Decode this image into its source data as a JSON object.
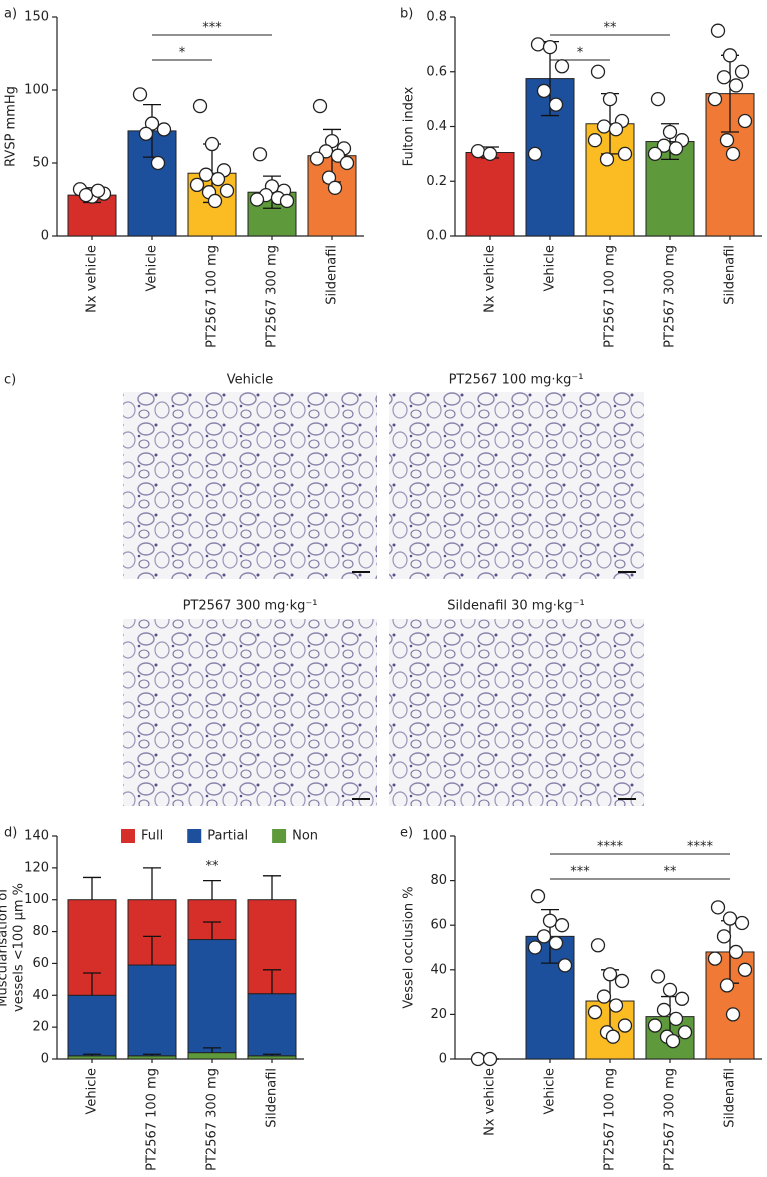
{
  "chart_data": [
    {
      "type": "bar",
      "label": "a)",
      "ylabel": "RVSP mmHg",
      "categories": [
        "Nx vehicle",
        "Vehicle",
        "PT2567 100 mg",
        "PT2567 300 mg",
        "Sildenafil"
      ],
      "values": [
        28,
        72,
        43,
        30,
        55
      ],
      "errors": [
        5,
        18,
        20,
        11,
        18
      ],
      "colors": [
        "#d62f2a",
        "#1c4f9c",
        "#fbbb22",
        "#5e9a3c",
        "#f07a35"
      ],
      "points": [
        [
          32,
          27,
          29,
          28,
          31
        ],
        [
          97,
          77,
          73,
          70,
          50
        ],
        [
          89,
          63,
          45,
          42,
          39,
          35,
          31,
          30,
          24
        ],
        [
          56,
          34,
          31,
          28,
          26,
          25,
          24
        ],
        [
          89,
          65,
          60,
          58,
          55,
          53,
          50,
          40,
          33
        ]
      ],
      "ylim": [
        0,
        150
      ],
      "yticks": [
        0,
        50,
        100,
        150
      ],
      "annotations": [
        {
          "between": [
            "Vehicle",
            "PT2567 100 mg"
          ],
          "label": "*"
        },
        {
          "between": [
            "Vehicle",
            "PT2567 300 mg"
          ],
          "label": "***"
        }
      ]
    },
    {
      "type": "bar",
      "label": "b)",
      "ylabel": "Fulton index",
      "categories": [
        "Nx vehicle",
        "Vehicle",
        "PT2567 100 mg",
        "PT2567 300 mg",
        "Sildenafil"
      ],
      "values": [
        0.305,
        0.575,
        0.41,
        0.345,
        0.52
      ],
      "errors": [
        0.02,
        0.135,
        0.11,
        0.065,
        0.14
      ],
      "colors": [
        "#d62f2a",
        "#1c4f9c",
        "#fbbb22",
        "#5e9a3c",
        "#f07a35"
      ],
      "points": [
        [
          0.31,
          0.3
        ],
        [
          0.7,
          0.69,
          0.62,
          0.53,
          0.48,
          0.3
        ],
        [
          0.6,
          0.5,
          0.42,
          0.4,
          0.39,
          0.35,
          0.3,
          0.28
        ],
        [
          0.5,
          0.38,
          0.35,
          0.33,
          0.32,
          0.3
        ],
        [
          0.75,
          0.66,
          0.6,
          0.58,
          0.55,
          0.5,
          0.42,
          0.35,
          0.3
        ]
      ],
      "ylim": [
        0,
        0.8
      ],
      "yticks": [
        {
          "value": 0,
          "label": "0.0"
        },
        0.2,
        0.4,
        0.6,
        0.8
      ],
      "annotations": [
        {
          "between": [
            "Vehicle",
            "PT2567 100 mg"
          ],
          "label": "*"
        },
        {
          "between": [
            "Vehicle",
            "PT2567 300 mg"
          ],
          "label": "**"
        }
      ]
    },
    {
      "type": "stacked_bar",
      "label": "d)",
      "ylabel": [
        "Muscularisation of",
        "vessels <100 µm %"
      ],
      "categories": [
        "Vehicle",
        "PT2567 100 mg",
        "PT2567 300 mg",
        "Sildenafil"
      ],
      "series": [
        {
          "name": "Non",
          "color": "#5e9a3c",
          "values": [
            2,
            2,
            4,
            2
          ],
          "errors": [
            1,
            1,
            3,
            1
          ]
        },
        {
          "name": "Partial",
          "color": "#1c4f9c",
          "values": [
            38,
            57,
            71,
            39
          ],
          "errors": [
            14,
            18,
            11,
            15
          ]
        },
        {
          "name": "Full",
          "color": "#d62f2a",
          "values": [
            60,
            41,
            25,
            59
          ],
          "errors": [
            14,
            20,
            12,
            15
          ]
        }
      ],
      "ylim": [
        0,
        140
      ],
      "yticks": [
        0,
        20,
        40,
        60,
        80,
        100,
        120,
        140
      ],
      "annotations": [
        {
          "category": "PT2567 300 mg",
          "label": "**"
        }
      ]
    },
    {
      "type": "bar",
      "label": "e)",
      "ylabel": "Vessel occlusion %",
      "categories": [
        "Nx vehicle",
        "Vehicle",
        "PT2567 100 mg",
        "PT2567 300 mg",
        "Sildenafil"
      ],
      "values": [
        0,
        55,
        26,
        19,
        48
      ],
      "errors": [
        0,
        12,
        14,
        9,
        14
      ],
      "colors": [
        "#d62f2a",
        "#1c4f9c",
        "#fbbb22",
        "#5e9a3c",
        "#f07a35"
      ],
      "points": [
        [
          0,
          0
        ],
        [
          73,
          62,
          60,
          55,
          52,
          50,
          42
        ],
        [
          51,
          38,
          35,
          28,
          24,
          21,
          15,
          12,
          10
        ],
        [
          37,
          31,
          27,
          22,
          18,
          15,
          12,
          10,
          8
        ],
        [
          68,
          63,
          61,
          55,
          48,
          45,
          40,
          33,
          20
        ]
      ],
      "ylim": [
        0,
        100
      ],
      "yticks": [
        0,
        20,
        40,
        60,
        80,
        100
      ],
      "annotations": [
        {
          "between": [
            "Vehicle",
            "PT2567 100 mg"
          ],
          "label": "***"
        },
        {
          "between": [
            "PT2567 100 mg",
            "Sildenafil"
          ],
          "label": "**"
        },
        {
          "between": [
            "Vehicle",
            "PT2567 300 mg"
          ],
          "label": "****"
        },
        {
          "between": [
            "PT2567 300 mg",
            "Sildenafil"
          ],
          "label": "****"
        }
      ]
    }
  ],
  "micrographs": {
    "label": "c)",
    "titles": [
      "Vehicle",
      "PT2567 100 mg·kg⁻¹",
      "PT2567 300 mg·kg⁻¹",
      "Sildenafil 30 mg·kg⁻¹"
    ]
  }
}
